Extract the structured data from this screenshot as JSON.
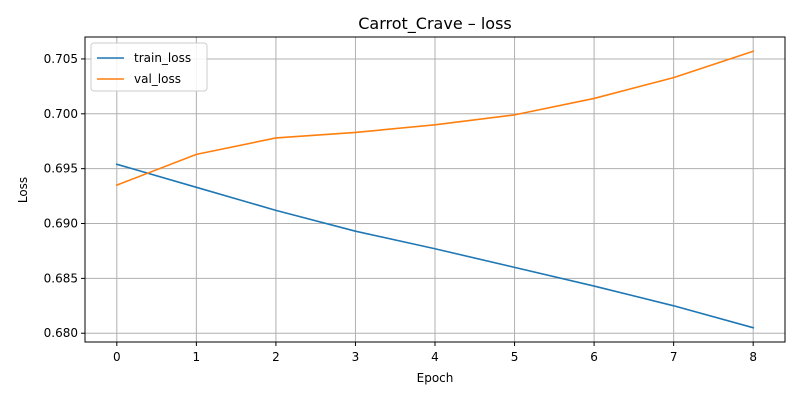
{
  "chart_data": {
    "type": "line",
    "title": "Carrot_Crave – loss",
    "xlabel": "Epoch",
    "ylabel": "Loss",
    "x": [
      0,
      1,
      2,
      3,
      4,
      5,
      6,
      7,
      8
    ],
    "xticks": [
      "0",
      "1",
      "2",
      "3",
      "4",
      "5",
      "6",
      "7",
      "8"
    ],
    "yticks": [
      "0.680",
      "0.685",
      "0.690",
      "0.695",
      "0.700",
      "0.705"
    ],
    "xlim": [
      -0.4,
      8.4
    ],
    "ylim": [
      0.6792,
      0.707
    ],
    "grid": true,
    "legend_position": "upper-left",
    "series": [
      {
        "name": "train_loss",
        "color": "#1f77b4",
        "values": [
          0.6954,
          0.6933,
          0.6912,
          0.6893,
          0.6877,
          0.686,
          0.6843,
          0.6825,
          0.6805
        ]
      },
      {
        "name": "val_loss",
        "color": "#ff7f0e",
        "values": [
          0.6935,
          0.6963,
          0.6978,
          0.6983,
          0.699,
          0.6999,
          0.7014,
          0.7033,
          0.7057
        ]
      }
    ]
  }
}
